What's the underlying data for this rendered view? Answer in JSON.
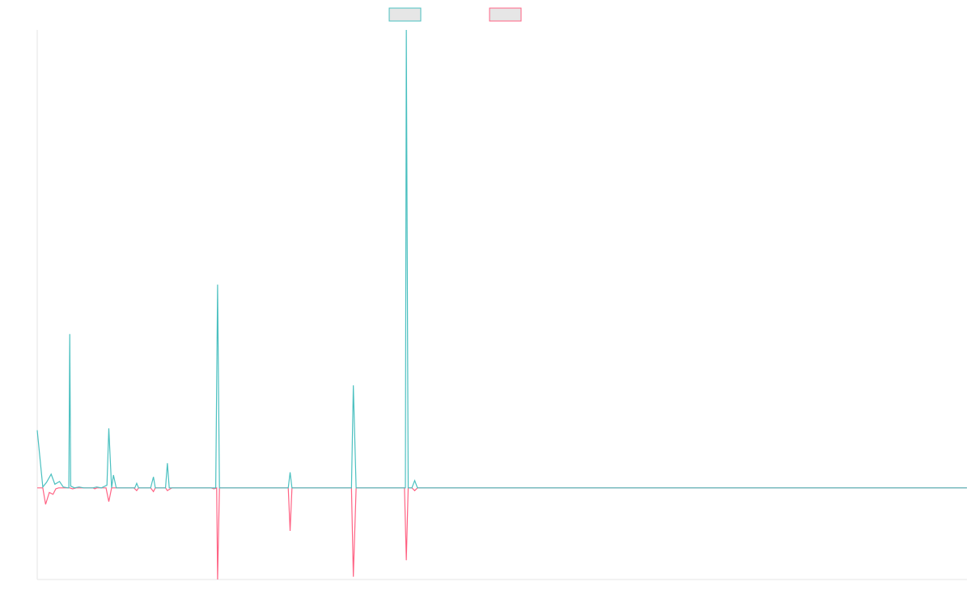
{
  "chart_data": {
    "type": "line",
    "title": "",
    "xlabel": "",
    "ylabel": "",
    "grid": false,
    "legend": "top-center",
    "xlim": [
      0,
      100
    ],
    "ylim": [
      -100,
      500
    ],
    "colors": {
      "series_a": "#4bc0c0",
      "series_b": "#ff6384"
    },
    "series": [
      {
        "key": "a",
        "color": "#4bc0c0",
        "points": [
          [
            0,
            63
          ],
          [
            0.6,
            1
          ],
          [
            1.0,
            6
          ],
          [
            1.5,
            15
          ],
          [
            1.9,
            4
          ],
          [
            2.4,
            7
          ],
          [
            2.8,
            1
          ],
          [
            3.3,
            0
          ],
          [
            3.4,
            0
          ],
          [
            3.5,
            168
          ],
          [
            3.6,
            2
          ],
          [
            4.0,
            0
          ],
          [
            4.5,
            1
          ],
          [
            5.0,
            0
          ],
          [
            6.0,
            0
          ],
          [
            6.4,
            1
          ],
          [
            6.9,
            0
          ],
          [
            7.5,
            3
          ],
          [
            7.7,
            65
          ],
          [
            8.0,
            0
          ],
          [
            8.2,
            14
          ],
          [
            8.5,
            0
          ],
          [
            10.5,
            0
          ],
          [
            10.7,
            5
          ],
          [
            10.9,
            0
          ],
          [
            12.2,
            0
          ],
          [
            12.5,
            12
          ],
          [
            12.7,
            0
          ],
          [
            13.8,
            0
          ],
          [
            14.0,
            27
          ],
          [
            14.2,
            0
          ],
          [
            18.6,
            0
          ],
          [
            18.8,
            0
          ],
          [
            19.2,
            0
          ],
          [
            19.4,
            222
          ],
          [
            19.6,
            0
          ],
          [
            27.0,
            0
          ],
          [
            27.2,
            17
          ],
          [
            27.4,
            0
          ],
          [
            33.8,
            0
          ],
          [
            34.0,
            112
          ],
          [
            34.3,
            0
          ],
          [
            34.6,
            0
          ],
          [
            39.4,
            0
          ],
          [
            39.6,
            0
          ],
          [
            39.7,
            500
          ],
          [
            39.9,
            0
          ],
          [
            40.3,
            0
          ],
          [
            40.6,
            8
          ],
          [
            40.9,
            0
          ],
          [
            100,
            0
          ]
        ]
      },
      {
        "key": "b",
        "color": "#ff6384",
        "points": [
          [
            0,
            0
          ],
          [
            0.6,
            0
          ],
          [
            0.9,
            -18
          ],
          [
            1.3,
            -5
          ],
          [
            1.7,
            -7
          ],
          [
            2.0,
            -1
          ],
          [
            2.3,
            0
          ],
          [
            3.3,
            0
          ],
          [
            3.5,
            0
          ],
          [
            3.8,
            -1
          ],
          [
            4.2,
            0
          ],
          [
            5.8,
            0
          ],
          [
            6.0,
            0
          ],
          [
            6.2,
            -1
          ],
          [
            6.4,
            0
          ],
          [
            7.4,
            0
          ],
          [
            7.7,
            -15
          ],
          [
            8.0,
            0
          ],
          [
            10.4,
            0
          ],
          [
            10.7,
            -3
          ],
          [
            10.9,
            0
          ],
          [
            12.2,
            0
          ],
          [
            12.5,
            -4
          ],
          [
            12.7,
            0
          ],
          [
            13.8,
            0
          ],
          [
            14.0,
            -3
          ],
          [
            14.3,
            -1
          ],
          [
            14.5,
            0
          ],
          [
            18.7,
            0
          ],
          [
            19.0,
            -1
          ],
          [
            19.3,
            0
          ],
          [
            19.4,
            -100
          ],
          [
            19.6,
            0
          ],
          [
            27.0,
            0
          ],
          [
            27.2,
            -47
          ],
          [
            27.4,
            0
          ],
          [
            33.8,
            0
          ],
          [
            34.0,
            -97
          ],
          [
            34.3,
            0
          ],
          [
            39.5,
            0
          ],
          [
            39.7,
            -79
          ],
          [
            39.9,
            0
          ],
          [
            40.3,
            0
          ],
          [
            40.6,
            -3
          ],
          [
            40.9,
            0
          ],
          [
            100,
            0
          ]
        ]
      }
    ]
  }
}
